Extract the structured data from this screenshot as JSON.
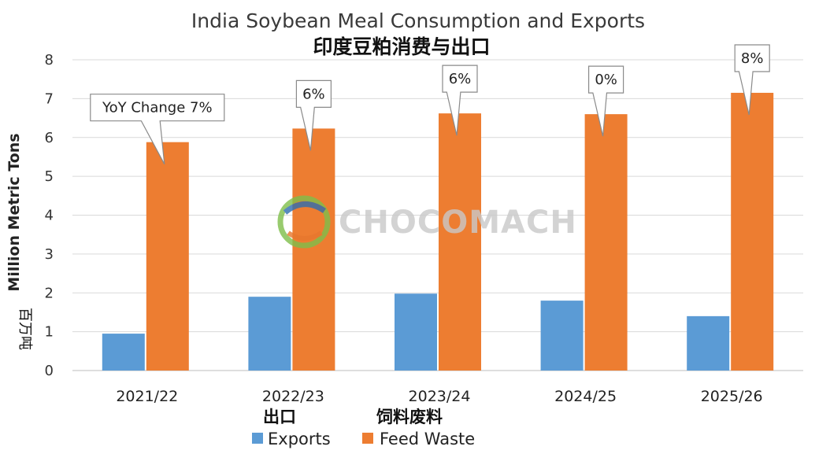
{
  "chart_data": {
    "type": "bar",
    "title": "India Soybean Meal Consumption and Exports",
    "subtitle": "印度豆粕消费与出口",
    "ylabel": "Million Metric Tons",
    "ylabel_cn": "百万吨",
    "xlabel": "",
    "ylim": [
      0,
      8
    ],
    "yticks": [
      "0",
      "1",
      "2",
      "3",
      "4",
      "5",
      "6",
      "7",
      "8"
    ],
    "grid": true,
    "categories": [
      "2021/22",
      "2022/23",
      "2023/24",
      "2024/25",
      "2025/26"
    ],
    "series": [
      {
        "name": "Exports",
        "name_cn": "出口",
        "color": "#5b9bd5",
        "values": [
          0.95,
          1.9,
          1.98,
          1.8,
          1.4
        ]
      },
      {
        "name": "Feed Waste",
        "name_cn": "饲料废料",
        "color": "#ed7d31",
        "values": [
          5.88,
          6.23,
          6.62,
          6.6,
          7.15
        ]
      }
    ],
    "annotations": [
      "YoY Change 7%",
      "6%",
      "6%",
      "0%",
      "8%"
    ],
    "legend_position": "bottom",
    "watermark": "CHOCOMACH"
  }
}
